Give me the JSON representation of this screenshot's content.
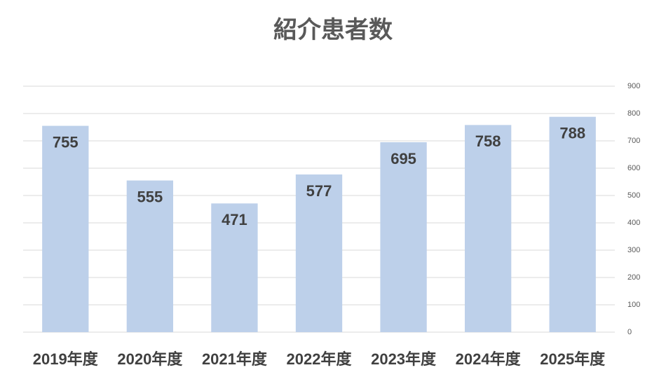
{
  "chart_data": {
    "type": "bar",
    "title": "紹介患者数",
    "categories": [
      "2019年度",
      "2020年度",
      "2021年度",
      "2022年度",
      "2023年度",
      "2024年度",
      "2025年度"
    ],
    "values": [
      755,
      555,
      471,
      577,
      695,
      758,
      788
    ],
    "color": "#bdd0ea",
    "ylim": [
      0,
      900
    ],
    "yticks": [
      0,
      100,
      200,
      300,
      400,
      500,
      600,
      700,
      800,
      900
    ],
    "grid": true,
    "yaxis_side": "right",
    "data_labels": true
  }
}
